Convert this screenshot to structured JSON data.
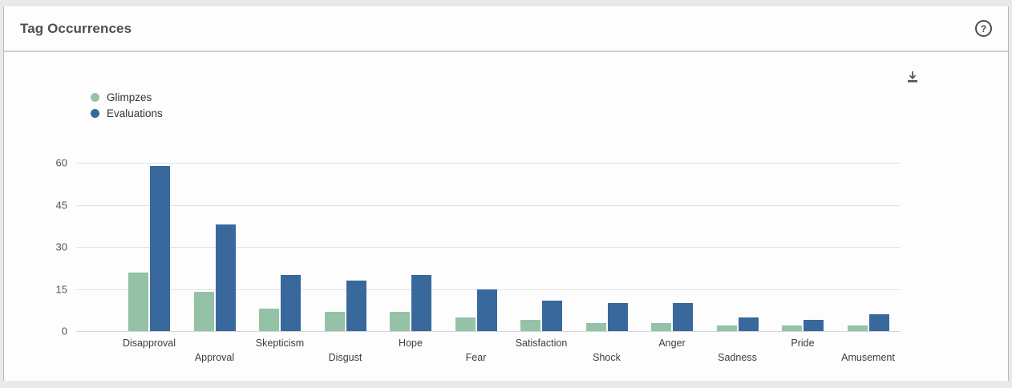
{
  "header": {
    "title": "Tag Occurrences",
    "help_label": "?"
  },
  "icons": {
    "help": "question-mark-circle",
    "download": "download-arrow-tray"
  },
  "colors": {
    "glimpzes": "#95c2a7",
    "evaluations": "#39699c",
    "gridline": "#e2e2e2",
    "axis_text": "#555555"
  },
  "chart_data": {
    "type": "bar",
    "title": "Tag Occurrences",
    "categories": [
      "Disapproval",
      "Approval",
      "Skepticism",
      "Disgust",
      "Hope",
      "Fear",
      "Satisfaction",
      "Shock",
      "Anger",
      "Sadness",
      "Pride",
      "Amusement"
    ],
    "series": [
      {
        "name": "Glimpzes",
        "color": "#95c2a7",
        "values": [
          21,
          14,
          8,
          7,
          7,
          5,
          4,
          3,
          3,
          2,
          2,
          2
        ]
      },
      {
        "name": "Evaluations",
        "color": "#39699c",
        "values": [
          59,
          38,
          20,
          18,
          20,
          15,
          11,
          10,
          10,
          5,
          4,
          6
        ]
      }
    ],
    "xlabel": "",
    "ylabel": "",
    "ylim": [
      0,
      60
    ],
    "yticks": [
      0,
      15,
      30,
      45,
      60
    ],
    "grid": true,
    "legend_position": "top-left",
    "xlabel_layout": "alternating-two-rows"
  }
}
